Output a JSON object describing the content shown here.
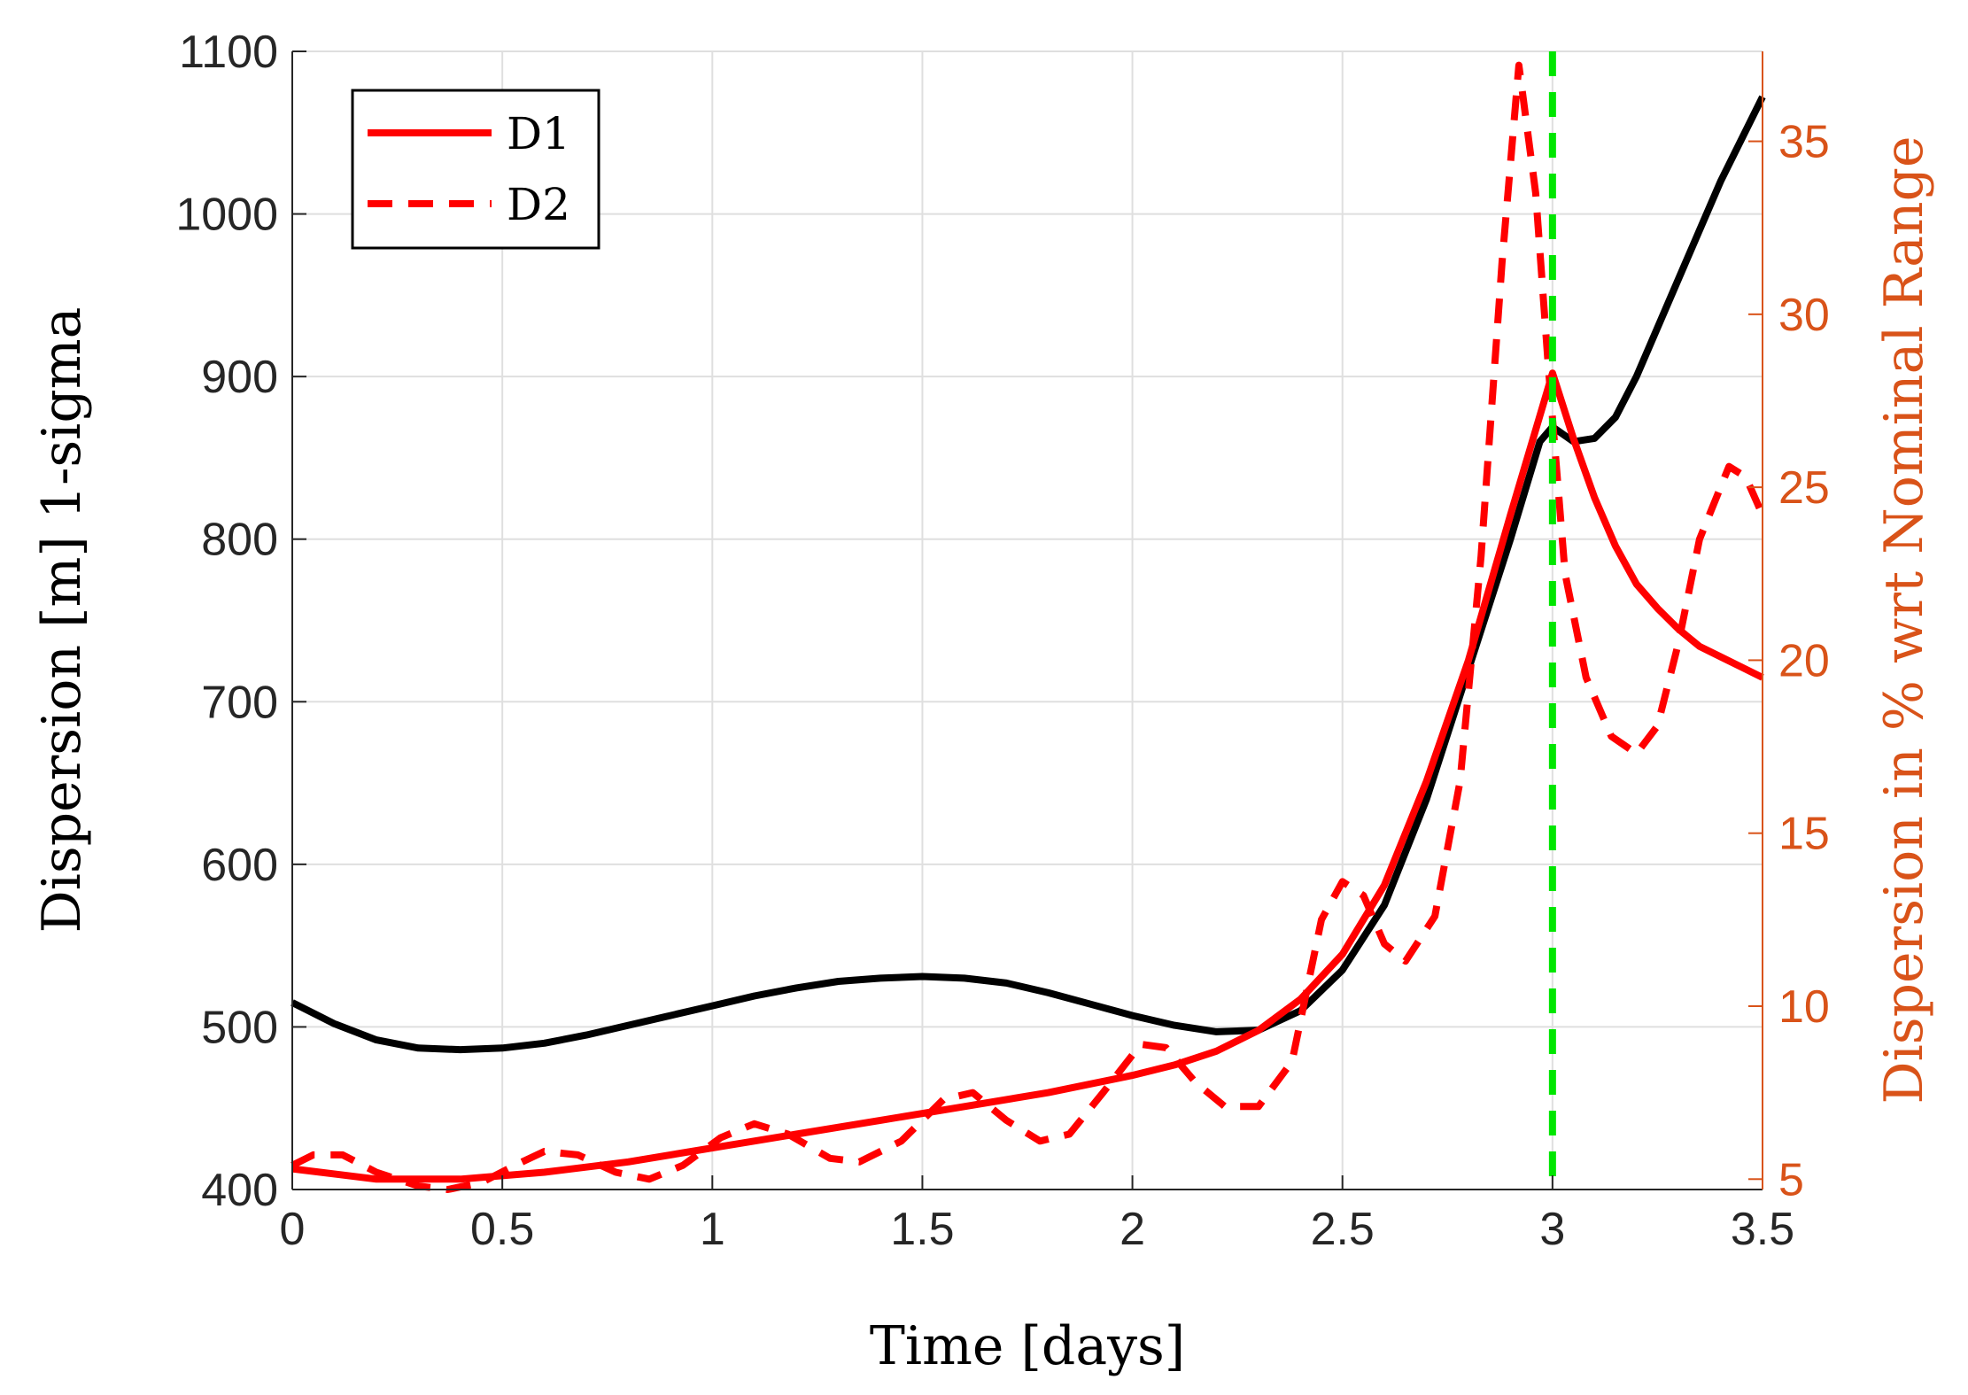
{
  "chart_data": {
    "type": "line",
    "title": "",
    "xlabel": "Time [days]",
    "ylabel": "Dispersion [m] 1-sigma",
    "ylabel_right": "Dispersion in % wrt Nominal Range",
    "xlim": [
      0,
      3.5
    ],
    "ylim": [
      400,
      1100
    ],
    "ylim_right": [
      4.7,
      37.6
    ],
    "grid": true,
    "legend_position": "top-left",
    "x_ticks": [
      {
        "value": 0,
        "label": "0"
      },
      {
        "value": 0.5,
        "label": "0.5"
      },
      {
        "value": 1,
        "label": "1"
      },
      {
        "value": 1.5,
        "label": "1.5"
      },
      {
        "value": 2,
        "label": "2"
      },
      {
        "value": 2.5,
        "label": "2.5"
      },
      {
        "value": 3,
        "label": "3"
      },
      {
        "value": 3.5,
        "label": "3.5"
      }
    ],
    "y_ticks": [
      {
        "value": 400,
        "label": "400"
      },
      {
        "value": 500,
        "label": "500"
      },
      {
        "value": 600,
        "label": "600"
      },
      {
        "value": 700,
        "label": "700"
      },
      {
        "value": 800,
        "label": "800"
      },
      {
        "value": 900,
        "label": "900"
      },
      {
        "value": 1000,
        "label": "1000"
      },
      {
        "value": 1100,
        "label": "1100"
      }
    ],
    "y_ticks_right": [
      {
        "value": 5,
        "label": "5"
      },
      {
        "value": 10,
        "label": "10"
      },
      {
        "value": 15,
        "label": "15"
      },
      {
        "value": 20,
        "label": "20"
      },
      {
        "value": 25,
        "label": "25"
      },
      {
        "value": 30,
        "label": "30"
      },
      {
        "value": 35,
        "label": "35"
      }
    ],
    "series": [
      {
        "name": "D1",
        "axis": "left",
        "color": "#000000",
        "style": "solid",
        "in_legend": false,
        "points": [
          [
            0,
            515
          ],
          [
            0.1,
            502
          ],
          [
            0.2,
            492
          ],
          [
            0.3,
            487
          ],
          [
            0.4,
            486
          ],
          [
            0.5,
            487
          ],
          [
            0.6,
            490
          ],
          [
            0.7,
            495
          ],
          [
            0.8,
            501
          ],
          [
            0.9,
            507
          ],
          [
            1.0,
            513
          ],
          [
            1.1,
            519
          ],
          [
            1.2,
            524
          ],
          [
            1.3,
            528
          ],
          [
            1.4,
            530
          ],
          [
            1.5,
            531
          ],
          [
            1.6,
            530
          ],
          [
            1.7,
            527
          ],
          [
            1.8,
            521
          ],
          [
            1.9,
            514
          ],
          [
            2.0,
            507
          ],
          [
            2.1,
            501
          ],
          [
            2.2,
            497
          ],
          [
            2.3,
            498
          ],
          [
            2.4,
            510
          ],
          [
            2.5,
            535
          ],
          [
            2.6,
            575
          ],
          [
            2.7,
            640
          ],
          [
            2.8,
            720
          ],
          [
            2.9,
            800
          ],
          [
            2.97,
            860
          ],
          [
            3.0,
            869
          ],
          [
            3.05,
            860
          ],
          [
            3.1,
            862
          ],
          [
            3.15,
            875
          ],
          [
            3.2,
            900
          ],
          [
            3.3,
            960
          ],
          [
            3.4,
            1020
          ],
          [
            3.5,
            1072
          ]
        ]
      },
      {
        "name": "D1",
        "axis": "right",
        "color": "#ff0000",
        "style": "solid",
        "in_legend": true,
        "points": [
          [
            0,
            5.3
          ],
          [
            0.2,
            5.0
          ],
          [
            0.4,
            5.0
          ],
          [
            0.6,
            5.2
          ],
          [
            0.8,
            5.5
          ],
          [
            1.0,
            5.9
          ],
          [
            1.2,
            6.3
          ],
          [
            1.4,
            6.7
          ],
          [
            1.6,
            7.1
          ],
          [
            1.8,
            7.5
          ],
          [
            2.0,
            8.0
          ],
          [
            2.1,
            8.3
          ],
          [
            2.2,
            8.7
          ],
          [
            2.3,
            9.3
          ],
          [
            2.4,
            10.2
          ],
          [
            2.5,
            11.5
          ],
          [
            2.6,
            13.5
          ],
          [
            2.7,
            16.5
          ],
          [
            2.8,
            20.0
          ],
          [
            2.9,
            24.2
          ],
          [
            3.0,
            28.3
          ],
          [
            3.05,
            26.4
          ],
          [
            3.1,
            24.7
          ],
          [
            3.15,
            23.3
          ],
          [
            3.2,
            22.2
          ],
          [
            3.25,
            21.5
          ],
          [
            3.3,
            20.9
          ],
          [
            3.35,
            20.4
          ],
          [
            3.4,
            20.1
          ],
          [
            3.45,
            19.8
          ],
          [
            3.5,
            19.5
          ]
        ]
      },
      {
        "name": "D2",
        "axis": "right",
        "color": "#ff0000",
        "style": "dashed",
        "in_legend": true,
        "points": [
          [
            0,
            5.4
          ],
          [
            0.05,
            5.7
          ],
          [
            0.12,
            5.7
          ],
          [
            0.2,
            5.2
          ],
          [
            0.3,
            4.8
          ],
          [
            0.37,
            4.7
          ],
          [
            0.45,
            4.9
          ],
          [
            0.53,
            5.4
          ],
          [
            0.6,
            5.8
          ],
          [
            0.68,
            5.7
          ],
          [
            0.77,
            5.2
          ],
          [
            0.85,
            5.0
          ],
          [
            0.93,
            5.4
          ],
          [
            1.02,
            6.2
          ],
          [
            1.1,
            6.6
          ],
          [
            1.18,
            6.3
          ],
          [
            1.28,
            5.6
          ],
          [
            1.35,
            5.5
          ],
          [
            1.45,
            6.1
          ],
          [
            1.55,
            7.3
          ],
          [
            1.62,
            7.5
          ],
          [
            1.7,
            6.7
          ],
          [
            1.78,
            6.1
          ],
          [
            1.85,
            6.3
          ],
          [
            1.93,
            7.5
          ],
          [
            2.02,
            8.9
          ],
          [
            2.08,
            8.8
          ],
          [
            2.15,
            7.8
          ],
          [
            2.22,
            7.1
          ],
          [
            2.3,
            7.1
          ],
          [
            2.38,
            8.4
          ],
          [
            2.45,
            12.5
          ],
          [
            2.5,
            13.6
          ],
          [
            2.55,
            13.2
          ],
          [
            2.6,
            11.8
          ],
          [
            2.65,
            11.3
          ],
          [
            2.72,
            12.6
          ],
          [
            2.78,
            16.5
          ],
          [
            2.83,
            23.0
          ],
          [
            2.88,
            31.5
          ],
          [
            2.92,
            37.2
          ],
          [
            2.96,
            33.5
          ],
          [
            2.99,
            28.5
          ],
          [
            3.03,
            22.5
          ],
          [
            3.08,
            19.5
          ],
          [
            3.14,
            17.8
          ],
          [
            3.2,
            17.3
          ],
          [
            3.25,
            18.1
          ],
          [
            3.3,
            20.5
          ],
          [
            3.35,
            23.5
          ],
          [
            3.42,
            25.6
          ],
          [
            3.46,
            25.3
          ],
          [
            3.5,
            24.2
          ]
        ]
      }
    ],
    "reference_lines": [
      {
        "name": "reference-line",
        "x": 3.0,
        "color": "#00e600",
        "style": "dashed"
      }
    ],
    "legend": [
      {
        "label": "D1",
        "color": "#ff0000",
        "style": "solid"
      },
      {
        "label": "D2",
        "color": "#ff0000",
        "style": "dashed"
      }
    ]
  }
}
